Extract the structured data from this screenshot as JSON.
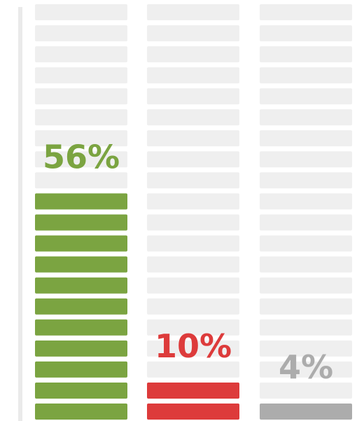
{
  "chart_data": {
    "type": "bar",
    "ylim": [
      0,
      100
    ],
    "grid": false,
    "series": [
      {
        "value": 56,
        "label": "56%",
        "color": "#7ba441"
      },
      {
        "value": 10,
        "label": "10%",
        "color": "#dd3b3b"
      },
      {
        "value": 4,
        "label": "4%",
        "color": "#acacac"
      }
    ],
    "empty_cell_color": "#efefef",
    "axis_line_color": "#eaeaea"
  }
}
